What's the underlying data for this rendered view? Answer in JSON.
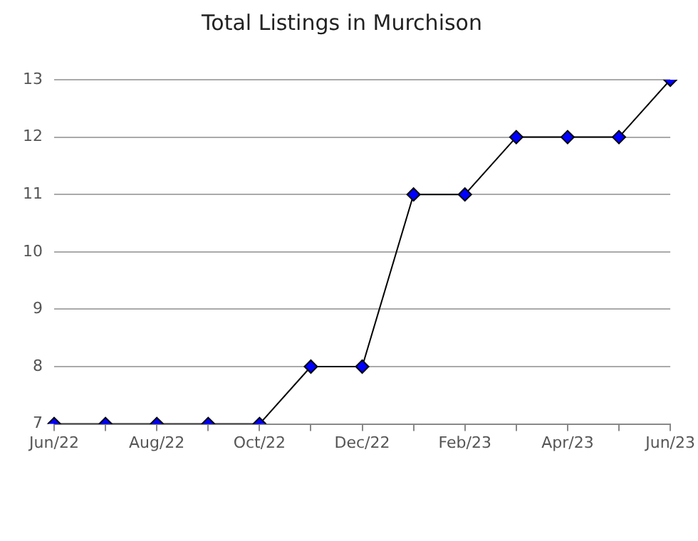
{
  "chart_data": {
    "type": "line",
    "title": "Total Listings in Murchison",
    "categories": [
      "Jun/22",
      null,
      "Aug/22",
      null,
      "Oct/22",
      null,
      "Dec/22",
      null,
      "Feb/23",
      null,
      "Apr/23",
      null,
      "Jun/23"
    ],
    "series": [
      {
        "color": "#0000ff",
        "values": [
          7,
          7,
          7,
          7,
          7,
          8,
          8,
          11,
          11,
          12,
          12,
          12,
          13
        ]
      }
    ],
    "ylim": [
      7,
      13
    ],
    "yticks": [
      7,
      8,
      9,
      10,
      11,
      12,
      13
    ],
    "grid": "y",
    "legend": false,
    "marker": "diamond",
    "line_style": "solid"
  }
}
